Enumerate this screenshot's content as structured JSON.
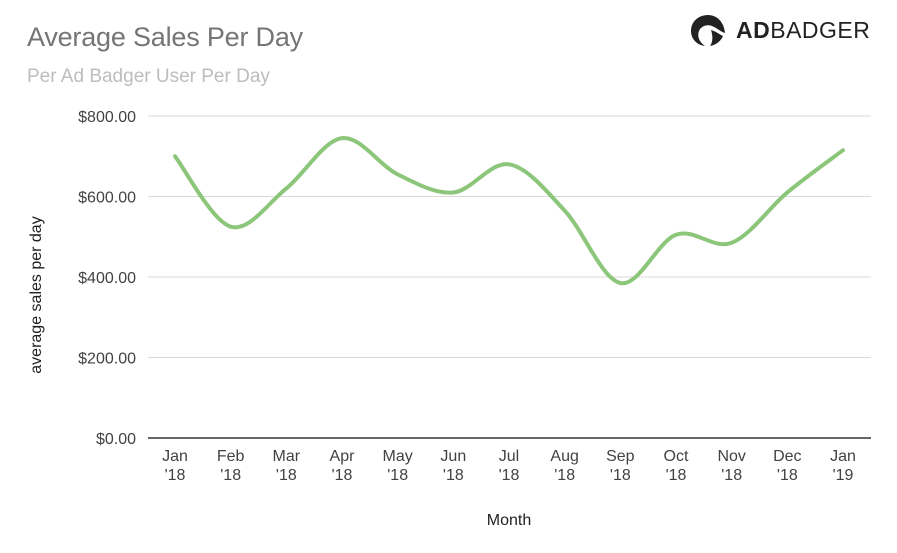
{
  "header": {
    "title": "Average Sales Per Day",
    "subtitle": "Per Ad Badger User Per Day"
  },
  "logo": {
    "bold_part": "AD",
    "light_part": "BADGER",
    "icon": "badger-head-icon"
  },
  "colors": {
    "line": "#8cc67a",
    "grid": "#d9d9d9",
    "axis": "#333333"
  },
  "chart_data": {
    "type": "line",
    "title": "Average Sales Per Day",
    "subtitle": "Per Ad Badger User Per Day",
    "xlabel": "Month",
    "ylabel": "average sales per day",
    "ylim": [
      0,
      800
    ],
    "yticks": [
      0,
      200,
      400,
      600,
      800
    ],
    "ytick_labels": [
      "$0.00",
      "$200.00",
      "$400.00",
      "$600.00",
      "$800.00"
    ],
    "categories": [
      [
        "Jan",
        "'18"
      ],
      [
        "Feb",
        "'18"
      ],
      [
        "Mar",
        "'18"
      ],
      [
        "Apr",
        "'18"
      ],
      [
        "May",
        "'18"
      ],
      [
        "Jun",
        "'18"
      ],
      [
        "Jul",
        "'18"
      ],
      [
        "Aug",
        "'18"
      ],
      [
        "Sep",
        "'18"
      ],
      [
        "Oct",
        "'18"
      ],
      [
        "Nov",
        "'18"
      ],
      [
        "Dec",
        "'18"
      ],
      [
        "Jan",
        "'19"
      ]
    ],
    "values": [
      700,
      525,
      620,
      745,
      655,
      610,
      680,
      565,
      385,
      505,
      485,
      610,
      715
    ],
    "grid": true,
    "legend": "none",
    "smooth": true
  }
}
